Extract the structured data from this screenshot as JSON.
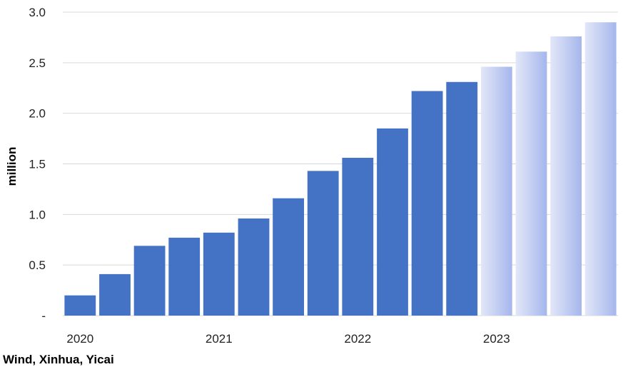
{
  "chart_data": {
    "type": "bar",
    "ylabel": "million",
    "ylim": [
      0,
      3.0
    ],
    "yticks": [
      {
        "value": 0,
        "label": "-"
      },
      {
        "value": 0.5,
        "label": "0.5"
      },
      {
        "value": 1.0,
        "label": "1.0"
      },
      {
        "value": 1.5,
        "label": "1.5"
      },
      {
        "value": 2.0,
        "label": "2.0"
      },
      {
        "value": 2.5,
        "label": "2.5"
      },
      {
        "value": 3.0,
        "label": "3.0"
      }
    ],
    "xtick_labels": [
      "2020",
      "2021",
      "2022",
      "2023"
    ],
    "xtick_positions": [
      0,
      4,
      8,
      12
    ],
    "grid": true,
    "values": [
      0.2,
      0.41,
      0.69,
      0.77,
      0.82,
      0.96,
      1.16,
      1.43,
      1.56,
      1.85,
      2.22,
      2.31,
      2.46,
      2.61,
      2.76,
      2.9
    ],
    "forecast_start_index": 12,
    "colors": {
      "actual": "#4472C4",
      "forecast_dark": "#A5B6EC",
      "forecast_light": "#E2E7F8",
      "grid": "#D9D9D9"
    }
  },
  "source": "Wind, Xinhua, Yicai"
}
